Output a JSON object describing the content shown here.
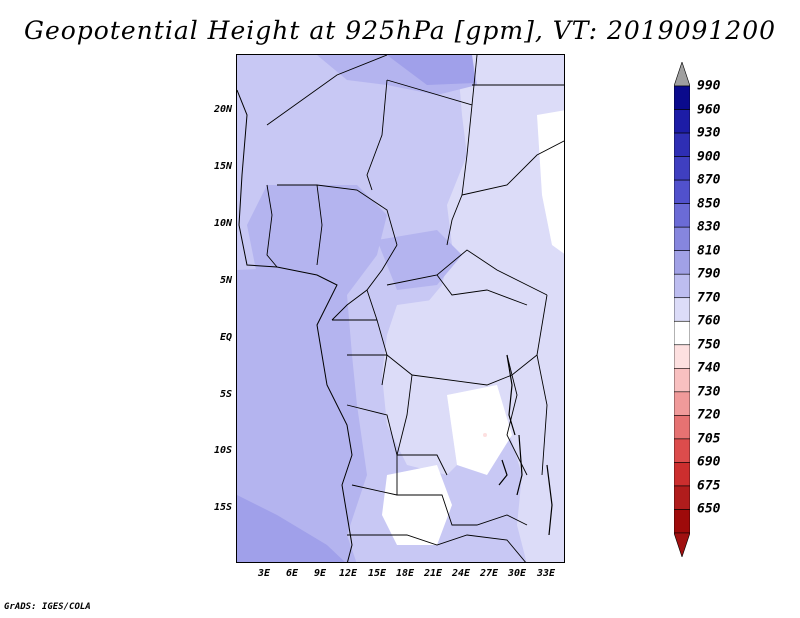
{
  "title": "Geopotential Height at 925hPa [gpm], VT: 2019091200",
  "footer": "GrADS: IGES/COLA",
  "lat_labels": [
    "20N",
    "15N",
    "10N",
    "5N",
    "EQ",
    "5S",
    "10S",
    "15S"
  ],
  "lon_labels": [
    "3E",
    "6E",
    "9E",
    "12E",
    "15E",
    "18E",
    "21E",
    "24E",
    "27E",
    "30E",
    "33E"
  ],
  "colorbar": {
    "levels": [
      "990",
      "960",
      "930",
      "900",
      "870",
      "850",
      "830",
      "810",
      "790",
      "770",
      "760",
      "750",
      "740",
      "730",
      "720",
      "705",
      "690",
      "675",
      "650"
    ],
    "colors": [
      "#0a0a8c",
      "#1c1ca6",
      "#2e2eb4",
      "#3f3fc0",
      "#5151cc",
      "#6b6bd6",
      "#8686de",
      "#a1a1e6",
      "#bdbdf0",
      "#dcdcf8",
      "#ffffff",
      "#fde0e0",
      "#f8c0c0",
      "#f09a9a",
      "#e67272",
      "#dc4c4c",
      "#cc2e2e",
      "#b01c1c",
      "#9e0a0a"
    ],
    "top_arrow_color": "#a0a0a0",
    "bottom_arrow_color": "#a01010"
  },
  "field_colors": {
    "c770": "#dcdcf8",
    "c790": "#c8c8f4",
    "c810": "#b4b4ef",
    "c830": "#a0a0ea",
    "white": "#ffffff",
    "pink": "#fde0e0"
  }
}
